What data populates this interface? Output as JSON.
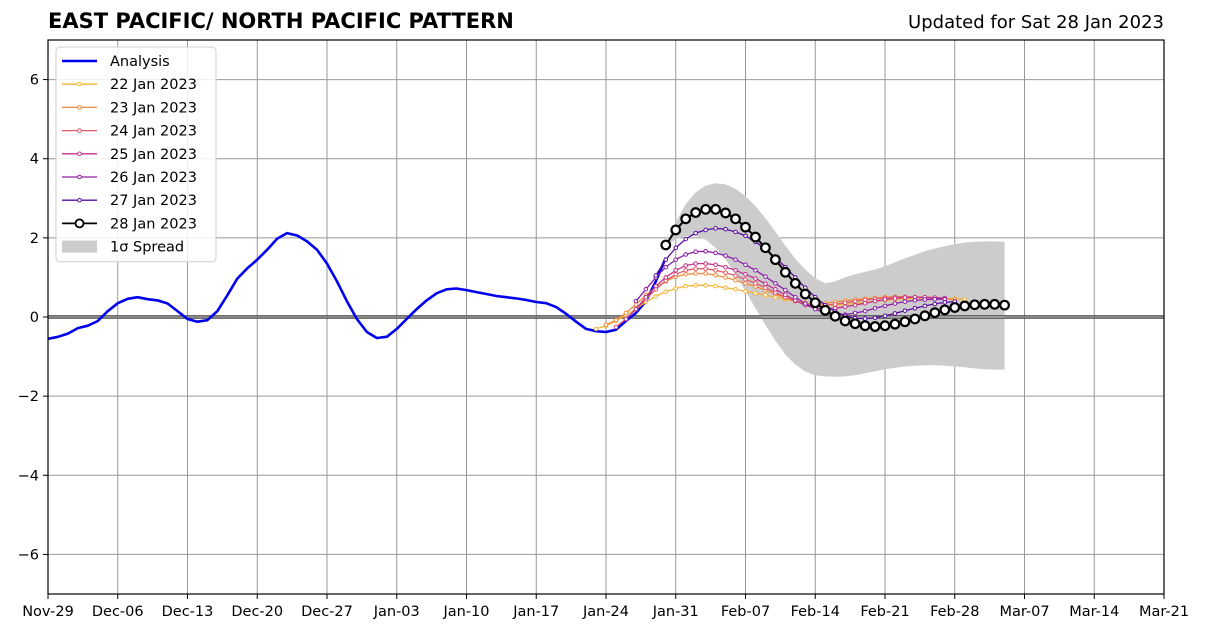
{
  "title": "EAST PACIFIC/ NORTH PACIFIC PATTERN",
  "updated": "Updated for Sat 28 Jan 2023",
  "chart_data": {
    "type": "line",
    "x_ticks": [
      "Nov-29",
      "Dec-06",
      "Dec-13",
      "Dec-20",
      "Dec-27",
      "Jan-03",
      "Jan-10",
      "Jan-17",
      "Jan-24",
      "Jan-31",
      "Feb-07",
      "Feb-14",
      "Feb-21",
      "Feb-28",
      "Mar-07",
      "Mar-14",
      "Mar-21"
    ],
    "x_tick_dates": [
      "2022-11-29",
      "2022-12-06",
      "2022-12-13",
      "2022-12-20",
      "2022-12-27",
      "2023-01-03",
      "2023-01-10",
      "2023-01-17",
      "2023-01-24",
      "2023-01-31",
      "2023-02-07",
      "2023-02-14",
      "2023-02-21",
      "2023-02-28",
      "2023-03-07",
      "2023-03-14",
      "2023-03-21"
    ],
    "y_ticks": [
      "6",
      "4",
      "2",
      "0",
      "−2",
      "−4",
      "−6"
    ],
    "y_tick_values": [
      6,
      4,
      2,
      0,
      -2,
      -4,
      -6
    ],
    "xlim": [
      "2022-11-29",
      "2023-03-21"
    ],
    "ylim": [
      -7,
      7
    ],
    "grid": true,
    "legend_position": "top-left",
    "series": [
      {
        "name": "Analysis",
        "color": "#0000ee",
        "start": "2022-11-29",
        "values": [
          -0.55,
          -0.5,
          -0.42,
          -0.28,
          -0.22,
          -0.1,
          0.15,
          0.35,
          0.46,
          0.5,
          0.45,
          0.42,
          0.34,
          0.15,
          -0.05,
          -0.12,
          -0.08,
          0.15,
          0.55,
          0.97,
          1.23,
          1.45,
          1.7,
          1.98,
          2.12,
          2.06,
          1.91,
          1.7,
          1.35,
          0.9,
          0.4,
          -0.05,
          -0.38,
          -0.53,
          -0.5,
          -0.3,
          -0.05,
          0.2,
          0.42,
          0.6,
          0.7,
          0.72,
          0.68,
          0.63,
          0.58,
          0.53,
          0.5,
          0.47,
          0.43,
          0.38,
          0.35,
          0.25,
          0.08,
          -0.12,
          -0.3,
          -0.36,
          -0.38,
          -0.32,
          -0.1,
          0.1,
          0.4,
          0.9,
          1.5
        ]
      },
      {
        "name": "22 Jan 2023",
        "color": "#f5b533",
        "start": "2023-01-23",
        "values": [
          -0.3,
          -0.22,
          -0.1,
          0.05,
          0.2,
          0.38,
          0.52,
          0.64,
          0.72,
          0.78,
          0.8,
          0.8,
          0.78,
          0.74,
          0.7,
          0.65,
          0.6,
          0.55,
          0.5,
          0.45,
          0.4,
          0.36,
          0.32,
          0.3,
          0.3,
          0.32,
          0.34,
          0.37,
          0.4,
          0.42,
          0.44,
          0.46,
          0.47,
          0.48,
          0.48,
          0.47,
          0.46,
          0.44
        ]
      },
      {
        "name": "23 Jan 2023",
        "color": "#f28b3c",
        "start": "2023-01-24",
        "values": [
          -0.2,
          -0.08,
          0.1,
          0.32,
          0.55,
          0.75,
          0.9,
          1.02,
          1.08,
          1.1,
          1.1,
          1.06,
          1.0,
          0.93,
          0.85,
          0.77,
          0.68,
          0.58,
          0.48,
          0.4,
          0.35,
          0.34,
          0.35,
          0.38,
          0.41,
          0.44,
          0.46,
          0.48,
          0.5,
          0.51,
          0.51,
          0.5,
          0.49,
          0.48,
          0.46,
          0.44
        ]
      },
      {
        "name": "24 Jan 2023",
        "color": "#e05a6b",
        "start": "2023-01-25",
        "values": [
          -0.25,
          -0.05,
          0.2,
          0.45,
          0.7,
          0.92,
          1.08,
          1.18,
          1.22,
          1.22,
          1.18,
          1.12,
          1.04,
          0.95,
          0.85,
          0.74,
          0.62,
          0.5,
          0.4,
          0.32,
          0.3,
          0.3,
          0.32,
          0.36,
          0.4,
          0.43,
          0.46,
          0.48,
          0.5,
          0.51,
          0.5,
          0.49,
          0.47,
          0.45
        ]
      },
      {
        "name": "25 Jan 2023",
        "color": "#c2338a",
        "start": "2023-01-26",
        "values": [
          -0.05,
          0.2,
          0.5,
          0.78,
          1.0,
          1.18,
          1.3,
          1.35,
          1.35,
          1.32,
          1.26,
          1.18,
          1.08,
          0.97,
          0.84,
          0.7,
          0.56,
          0.42,
          0.3,
          0.22,
          0.2,
          0.22,
          0.26,
          0.3,
          0.35,
          0.4,
          0.44,
          0.47,
          0.49,
          0.5,
          0.5,
          0.49,
          0.48
        ]
      },
      {
        "name": "26 Jan 2023",
        "color": "#8e1ea8",
        "start": "2023-01-27",
        "values": [
          0.4,
          0.7,
          1.0,
          1.26,
          1.45,
          1.58,
          1.65,
          1.66,
          1.62,
          1.55,
          1.45,
          1.32,
          1.18,
          1.02,
          0.85,
          0.68,
          0.5,
          0.34,
          0.2,
          0.1,
          0.06,
          0.06,
          0.1,
          0.15,
          0.22,
          0.28,
          0.34,
          0.39,
          0.42,
          0.44,
          0.45,
          0.45
        ]
      },
      {
        "name": "27 Jan 2023",
        "color": "#5a0c9e",
        "start": "2023-01-29",
        "values": [
          1.05,
          1.45,
          1.75,
          1.97,
          2.12,
          2.2,
          2.24,
          2.22,
          2.15,
          2.05,
          1.9,
          1.72,
          1.5,
          1.26,
          1.0,
          0.74,
          0.5,
          0.3,
          0.14,
          0.03,
          -0.03,
          -0.04,
          -0.02,
          0.03,
          0.09,
          0.16,
          0.22,
          0.28,
          0.33,
          0.37,
          0.39
        ]
      },
      {
        "name": "28 Jan 2023",
        "color": "#000000",
        "start": "2023-01-30",
        "values": [
          1.82,
          2.2,
          2.48,
          2.64,
          2.72,
          2.72,
          2.63,
          2.48,
          2.27,
          2.02,
          1.75,
          1.45,
          1.13,
          0.85,
          0.58,
          0.36,
          0.17,
          0.02,
          -0.1,
          -0.17,
          -0.22,
          -0.24,
          -0.22,
          -0.18,
          -0.12,
          -0.05,
          0.03,
          0.11,
          0.18,
          0.24,
          0.28,
          0.31,
          0.32,
          0.32,
          0.3
        ]
      }
    ],
    "spread": {
      "name": "1σ Spread",
      "color": "#cccccc",
      "start": "2023-01-30",
      "upper": [
        1.82,
        2.4,
        2.85,
        3.15,
        3.32,
        3.38,
        3.35,
        3.24,
        3.05,
        2.8,
        2.5,
        2.15,
        1.8,
        1.47,
        1.2,
        0.98,
        0.85,
        0.9,
        1.0,
        1.08,
        1.14,
        1.2,
        1.28,
        1.38,
        1.48,
        1.57,
        1.66,
        1.73,
        1.79,
        1.84,
        1.88,
        1.9,
        1.91,
        1.91,
        1.9
      ],
      "lower": [
        1.82,
        1.95,
        2.05,
        2.05,
        1.95,
        1.75,
        1.45,
        1.08,
        0.65,
        0.22,
        -0.2,
        -0.6,
        -0.95,
        -1.2,
        -1.38,
        -1.47,
        -1.5,
        -1.51,
        -1.5,
        -1.47,
        -1.42,
        -1.37,
        -1.32,
        -1.28,
        -1.25,
        -1.23,
        -1.22,
        -1.22,
        -1.23,
        -1.25,
        -1.27,
        -1.3,
        -1.32,
        -1.33,
        -1.33
      ]
    }
  }
}
